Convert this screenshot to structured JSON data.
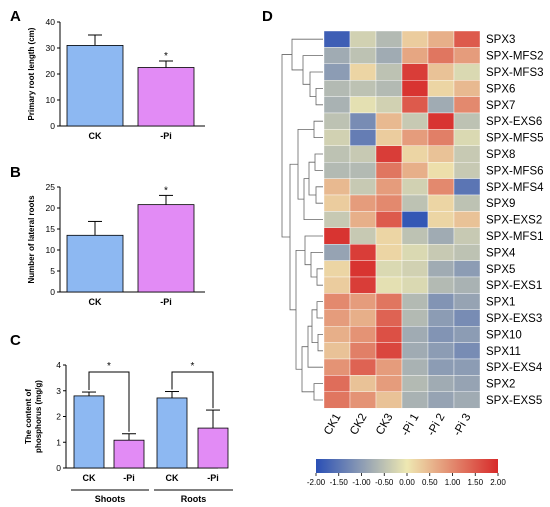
{
  "panels": {
    "a": "A",
    "b": "B",
    "c": "C",
    "d": "D"
  },
  "chart_data": [
    {
      "type": "bar",
      "panel": "A",
      "ylabel": "Primary root length (cm)",
      "ylim": [
        0,
        40
      ],
      "yticks": [
        0,
        10,
        20,
        30,
        40
      ],
      "categories": [
        "CK",
        "-Pi"
      ],
      "values": [
        31,
        22.5
      ],
      "errors": [
        4,
        2.5
      ],
      "significance": [
        "",
        "*"
      ],
      "colors": [
        "#8db8f2",
        "#e28bf5"
      ]
    },
    {
      "type": "bar",
      "panel": "B",
      "ylabel": "Number of lateral roots",
      "ylim": [
        0,
        25
      ],
      "yticks": [
        0,
        5,
        10,
        15,
        20,
        25
      ],
      "categories": [
        "CK",
        "-Pi"
      ],
      "values": [
        13.5,
        20.8
      ],
      "errors": [
        3.3,
        2.2
      ],
      "significance": [
        "",
        "*"
      ],
      "colors": [
        "#8db8f2",
        "#e28bf5"
      ]
    },
    {
      "type": "bar",
      "panel": "C",
      "ylabel": "The content of phosphorus (mg/g)",
      "ylim": [
        0,
        4
      ],
      "yticks": [
        0,
        1,
        2,
        3,
        4
      ],
      "groups": [
        "Shoots",
        "Roots"
      ],
      "categories": [
        "CK",
        "-Pi",
        "CK",
        "-Pi"
      ],
      "values": [
        2.8,
        1.08,
        2.72,
        1.55
      ],
      "errors": [
        0.15,
        0.25,
        0.25,
        0.7
      ],
      "significance_brackets": [
        {
          "from": 0,
          "to": 1,
          "label": "*"
        },
        {
          "from": 2,
          "to": 3,
          "label": "*"
        }
      ],
      "colors": [
        "#8db8f2",
        "#e28bf5",
        "#8db8f2",
        "#e28bf5"
      ]
    },
    {
      "type": "heatmap",
      "panel": "D",
      "columns": [
        "CK1",
        "CK2",
        "CK3",
        "-Pi 1",
        "-Pi 2",
        "-Pi 3"
      ],
      "rows": [
        "SPX3",
        "SPX-MFS2",
        "SPX-MFS3",
        "SPX6",
        "SPX7",
        "SPX-EXS6",
        "SPX-MFS5",
        "SPX8",
        "SPX-MFS6",
        "SPX-MFS4",
        "SPX9",
        "SPX-EXS2",
        "SPX-MFS1",
        "SPX4",
        "SPX5",
        "SPX-EXS1",
        "SPX1",
        "SPX-EXS3",
        "SPX10",
        "SPX11",
        "SPX-EXS4",
        "SPX2",
        "SPX-EXS5"
      ],
      "values": [
        [
          -1.8,
          -0.3,
          -0.6,
          0.3,
          0.6,
          1.5
        ],
        [
          -0.8,
          -0.5,
          -0.8,
          0.7,
          1.2,
          0.8
        ],
        [
          -1.0,
          0.2,
          -0.5,
          1.8,
          0.4,
          -0.2
        ],
        [
          -0.6,
          -0.5,
          -0.6,
          1.9,
          0.2,
          0.5
        ],
        [
          -0.7,
          -0.1,
          -0.3,
          1.5,
          -0.8,
          1.0
        ],
        [
          -0.5,
          -1.2,
          0.5,
          -0.4,
          1.9,
          -0.5
        ],
        [
          -0.3,
          -1.4,
          0.3,
          0.8,
          1.1,
          -0.2
        ],
        [
          -0.5,
          -0.4,
          1.8,
          0.2,
          0.4,
          -0.4
        ],
        [
          -0.6,
          -0.6,
          1.2,
          0.6,
          0.1,
          -0.4
        ],
        [
          0.5,
          -0.4,
          0.8,
          -0.3,
          1.0,
          -1.5
        ],
        [
          0.3,
          0.8,
          1.0,
          -0.5,
          0.2,
          -0.5
        ],
        [
          -0.4,
          0.6,
          1.5,
          -1.9,
          0.2,
          0.4
        ],
        [
          1.9,
          -0.4,
          0.2,
          -0.5,
          -0.8,
          -0.4
        ],
        [
          -0.9,
          1.8,
          0.2,
          -0.2,
          -0.4,
          -0.5
        ],
        [
          0.2,
          1.9,
          -0.2,
          -0.3,
          -0.8,
          -1.0
        ],
        [
          0.3,
          1.8,
          -0.1,
          -0.2,
          -0.6,
          -0.7
        ],
        [
          1.0,
          0.8,
          1.2,
          -0.6,
          -1.1,
          -0.9
        ],
        [
          0.8,
          0.6,
          1.4,
          -0.6,
          -1.0,
          -1.2
        ],
        [
          0.6,
          0.9,
          1.6,
          -0.8,
          -1.1,
          -1.0
        ],
        [
          0.4,
          1.1,
          1.7,
          -0.8,
          -1.0,
          -1.2
        ],
        [
          0.9,
          1.4,
          0.8,
          -0.7,
          -1.0,
          -1.0
        ],
        [
          1.3,
          0.4,
          0.8,
          -0.6,
          -0.8,
          -0.9
        ],
        [
          1.2,
          0.9,
          0.4,
          -0.7,
          -0.9,
          -0.8
        ]
      ],
      "scale": {
        "min": -2.0,
        "max": 2.0,
        "ticks": [
          "-2.00",
          "-1.50",
          "-1.00",
          "-0.50",
          "0.00",
          "0.50",
          "1.00",
          "1.50",
          "2.00"
        ],
        "colors": [
          "#2a4fb5",
          "#eee8b2",
          "#d72a2a"
        ]
      }
    }
  ]
}
